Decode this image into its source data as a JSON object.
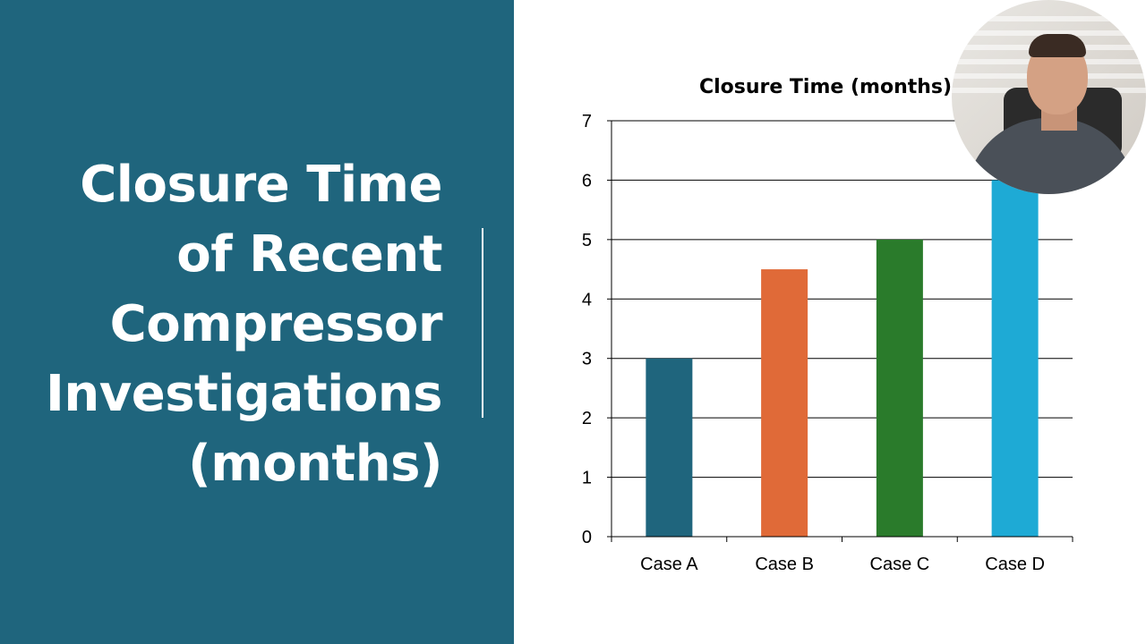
{
  "slide": {
    "title": "Closure Time of Recent Compressor Investigations (months)"
  },
  "colors": {
    "panel": "#1f657d",
    "bars": [
      "#1f657d",
      "#e06a38",
      "#2a7b2b",
      "#1eaad5"
    ]
  },
  "chart_data": {
    "type": "bar",
    "title": "Closure Time (months)",
    "categories": [
      "Case A",
      "Case B",
      "Case C",
      "Case D"
    ],
    "values": [
      3,
      4.5,
      5,
      6
    ],
    "ylim": [
      0,
      7
    ],
    "yticks": [
      "0",
      "1",
      "2",
      "3",
      "4",
      "5",
      "6",
      "7"
    ],
    "grid": true,
    "legend": "none"
  },
  "webcam": {
    "icon": "presenter-avatar-icon"
  }
}
